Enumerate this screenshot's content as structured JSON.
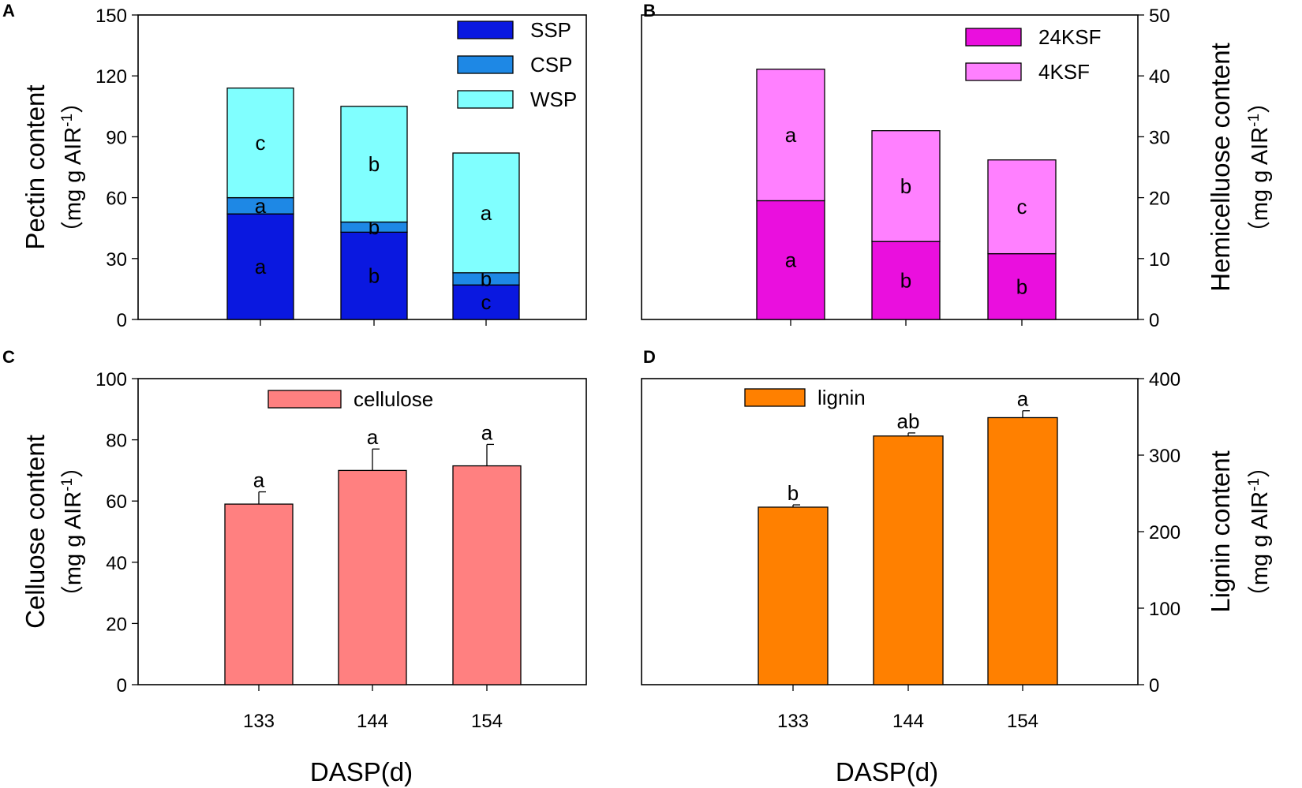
{
  "chart_data": [
    {
      "id": "A",
      "type": "bar",
      "stacked": true,
      "panel_label": "A",
      "categories": [
        "133",
        "144",
        "154"
      ],
      "series": [
        {
          "name": "SSP",
          "color": "#0a18e0",
          "values": [
            52,
            43,
            17
          ],
          "sig": [
            "a",
            "b",
            "c"
          ]
        },
        {
          "name": "CSP",
          "color": "#1e88e5",
          "values": [
            8,
            5,
            6
          ],
          "sig": [
            "a",
            "b",
            "b"
          ]
        },
        {
          "name": "WSP",
          "color": "#80ffff",
          "values": [
            54,
            57,
            59
          ],
          "sig": [
            "c",
            "b",
            "a"
          ]
        }
      ],
      "ylabel": "Pectin content",
      "yunit": "（mg g AIR",
      "yunit_sup": "-1",
      "yunit_end": "）",
      "ylim": [
        0,
        150
      ],
      "yticks": [
        0,
        30,
        60,
        90,
        120,
        150
      ],
      "yaxis_side": "left",
      "legend_position": "top-right"
    },
    {
      "id": "B",
      "type": "bar",
      "stacked": true,
      "panel_label": "B",
      "categories": [
        "133",
        "144",
        "154"
      ],
      "series": [
        {
          "name": "24KSF",
          "color": "#ea0fde",
          "values": [
            19.5,
            12.8,
            10.8
          ],
          "sig": [
            "a",
            "b",
            "b"
          ]
        },
        {
          "name": "4KSF",
          "color": "#ff80ff",
          "values": [
            21.6,
            18.2,
            15.4
          ],
          "sig": [
            "a",
            "b",
            "c"
          ]
        }
      ],
      "ylabel": "Hemicelluose content",
      "yunit": "（mg g AIR",
      "yunit_sup": "-1",
      "yunit_end": "）",
      "ylim": [
        0,
        50
      ],
      "yticks": [
        0,
        10,
        20,
        30,
        40,
        50
      ],
      "yaxis_side": "right",
      "legend_position": "top-right"
    },
    {
      "id": "C",
      "type": "bar",
      "stacked": false,
      "panel_label": "C",
      "categories": [
        "133",
        "144",
        "154"
      ],
      "series": [
        {
          "name": "cellulose",
          "color": "#ff8080",
          "values": [
            59,
            70,
            71.5
          ],
          "errors": [
            4,
            7,
            7
          ],
          "sig": [
            "a",
            "a",
            "a"
          ]
        }
      ],
      "xlabel": "DASP(d)",
      "ylabel": "Celluose content",
      "yunit": "（mg g AIR",
      "yunit_sup": "-1",
      "yunit_end": "）",
      "ylim": [
        0,
        100
      ],
      "yticks": [
        0,
        20,
        40,
        60,
        80,
        100
      ],
      "yaxis_side": "left",
      "legend_position": "top-center"
    },
    {
      "id": "D",
      "type": "bar",
      "stacked": false,
      "panel_label": "D",
      "categories": [
        "133",
        "144",
        "154"
      ],
      "series": [
        {
          "name": "lignin",
          "color": "#ff8000",
          "values": [
            232,
            325,
            349
          ],
          "errors": [
            3,
            4,
            9
          ],
          "sig": [
            "b",
            "ab",
            "a"
          ]
        }
      ],
      "xlabel": "DASP(d)",
      "ylabel": "Lignin content",
      "yunit": "（mg g AIR",
      "yunit_sup": "-1",
      "yunit_end": "）",
      "ylim": [
        0,
        400
      ],
      "yticks": [
        0,
        100,
        200,
        300,
        400
      ],
      "yaxis_side": "right",
      "legend_position": "top-left"
    }
  ]
}
